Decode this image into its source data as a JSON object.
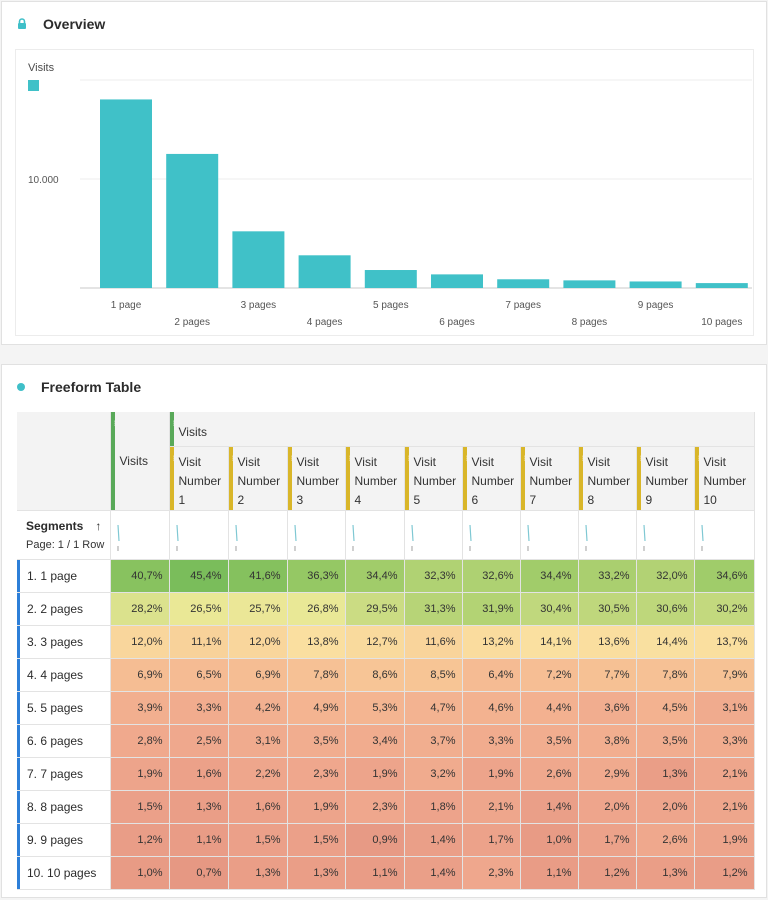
{
  "overview": {
    "title": "Overview",
    "lock_icon": "lock-icon",
    "legend_label": "Visits",
    "accent": "#40c1c8"
  },
  "chart_data": {
    "type": "bar",
    "categories": [
      "1 page",
      "2 pages",
      "3 pages",
      "4 pages",
      "5 pages",
      "6 pages",
      "7 pages",
      "8 pages",
      "9 pages",
      "10 pages"
    ],
    "series": [
      {
        "name": "Visits",
        "values": [
          17300,
          12300,
          5200,
          3000,
          1650,
          1250,
          800,
          700,
          600,
          450
        ]
      }
    ],
    "yticks": [
      {
        "value": 10000,
        "label": "10.000"
      }
    ],
    "ylim": [
      0,
      20000
    ],
    "grid": true,
    "legend": "top-left",
    "color": "#40c1c8"
  },
  "table": {
    "title": "Freeform Table",
    "dot_icon": "dot-icon",
    "visits_header": "Visits",
    "visits_group_header": "Visits",
    "column_labels": [
      "Visit Number 1",
      "Visit Number 2",
      "Visit Number 3",
      "Visit Number 4",
      "Visit Number 5",
      "Visit Number 6",
      "Visit Number 7",
      "Visit Number 8",
      "Visit Number 9",
      "Visit Number 10"
    ],
    "segments_label": "Segments",
    "sort_icon": "arrow-up-icon",
    "page_label": "Page: 1 / 1 Row",
    "rows": [
      {
        "label": "1. 1 page",
        "values": [
          "40,7%",
          "45,4%",
          "41,6%",
          "36,3%",
          "34,4%",
          "32,3%",
          "32,6%",
          "34,4%",
          "33,2%",
          "32,0%",
          "34,6%"
        ]
      },
      {
        "label": "2. 2 pages",
        "values": [
          "28,2%",
          "26,5%",
          "25,7%",
          "26,8%",
          "29,5%",
          "31,3%",
          "31,9%",
          "30,4%",
          "30,5%",
          "30,6%",
          "30,2%"
        ]
      },
      {
        "label": "3. 3 pages",
        "values": [
          "12,0%",
          "11,1%",
          "12,0%",
          "13,8%",
          "12,7%",
          "11,6%",
          "13,2%",
          "14,1%",
          "13,6%",
          "14,4%",
          "13,7%"
        ]
      },
      {
        "label": "4. 4 pages",
        "values": [
          "6,9%",
          "6,5%",
          "6,9%",
          "7,8%",
          "8,6%",
          "8,5%",
          "6,4%",
          "7,2%",
          "7,7%",
          "7,8%",
          "7,9%"
        ]
      },
      {
        "label": "5. 5 pages",
        "values": [
          "3,9%",
          "3,3%",
          "4,2%",
          "4,9%",
          "5,3%",
          "4,7%",
          "4,6%",
          "4,4%",
          "3,6%",
          "4,5%",
          "3,1%"
        ]
      },
      {
        "label": "6. 6 pages",
        "values": [
          "2,8%",
          "2,5%",
          "3,1%",
          "3,5%",
          "3,4%",
          "3,7%",
          "3,3%",
          "3,5%",
          "3,8%",
          "3,5%",
          "3,3%"
        ]
      },
      {
        "label": "7. 7 pages",
        "values": [
          "1,9%",
          "1,6%",
          "2,2%",
          "2,3%",
          "1,9%",
          "3,2%",
          "1,9%",
          "2,6%",
          "2,9%",
          "1,3%",
          "2,1%"
        ]
      },
      {
        "label": "8. 8 pages",
        "values": [
          "1,5%",
          "1,3%",
          "1,6%",
          "1,9%",
          "2,3%",
          "1,8%",
          "2,1%",
          "1,4%",
          "2,0%",
          "2,0%",
          "2,1%"
        ]
      },
      {
        "label": "9. 9 pages",
        "values": [
          "1,2%",
          "1,1%",
          "1,5%",
          "1,5%",
          "0,9%",
          "1,4%",
          "1,7%",
          "1,0%",
          "1,7%",
          "2,6%",
          "1,9%"
        ]
      },
      {
        "label": "10. 10 pages",
        "values": [
          "1,0%",
          "0,7%",
          "1,3%",
          "1,3%",
          "1,1%",
          "1,4%",
          "2,3%",
          "1,1%",
          "1,2%",
          "1,3%",
          "1,2%"
        ]
      }
    ]
  }
}
